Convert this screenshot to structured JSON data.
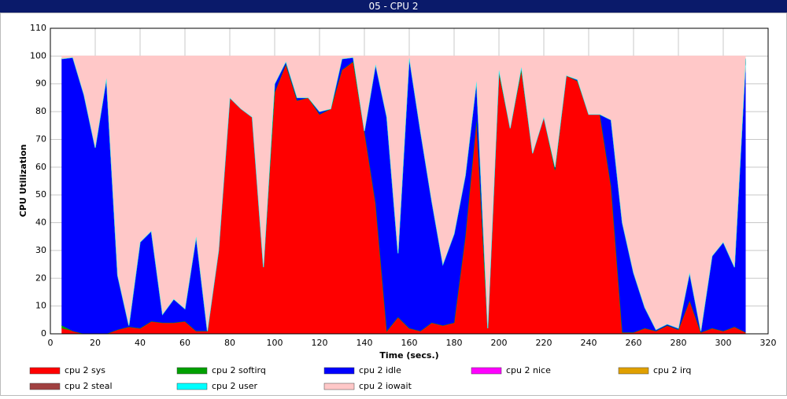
{
  "chart_data": {
    "type": "stacked_area",
    "title": "05 - CPU 2",
    "x_label": "Time (secs.)",
    "y_label": "CPU Utilization",
    "x": [
      5,
      10,
      15,
      20,
      25,
      30,
      35,
      40,
      45,
      50,
      55,
      60,
      65,
      70,
      75,
      80,
      85,
      90,
      95,
      100,
      105,
      110,
      115,
      120,
      125,
      130,
      135,
      140,
      145,
      150,
      155,
      160,
      165,
      170,
      175,
      180,
      185,
      190,
      195,
      200,
      205,
      210,
      215,
      220,
      225,
      230,
      235,
      240,
      245,
      250,
      255,
      260,
      265,
      270,
      275,
      280,
      285,
      290,
      295,
      300,
      305,
      310
    ],
    "xlim": [
      0,
      320
    ],
    "xticks": [
      0,
      20,
      40,
      60,
      80,
      100,
      120,
      140,
      160,
      180,
      200,
      220,
      240,
      260,
      280,
      300,
      320
    ],
    "ylim": [
      0,
      110
    ],
    "yticks": [
      0,
      10,
      20,
      30,
      40,
      50,
      60,
      70,
      80,
      90,
      100,
      110
    ],
    "grid": true,
    "series": [
      {
        "name": "cpu 2 sys",
        "color": "#ff0000",
        "values": [
          2,
          1,
          0,
          0,
          0,
          1.5,
          2.5,
          2,
          4.5,
          4,
          4,
          4.5,
          1,
          1,
          30,
          85,
          81,
          78,
          24,
          87,
          97,
          84,
          85,
          79,
          81,
          95,
          98,
          73,
          47,
          1,
          6,
          2,
          1,
          4,
          3,
          4,
          35,
          77,
          2,
          94,
          74,
          95,
          65,
          78,
          59,
          93,
          91,
          79,
          79,
          53,
          0.5,
          0.5,
          2,
          1,
          3,
          1.5,
          12,
          0.5,
          2,
          1,
          2.5,
          0.5
        ]
      },
      {
        "name": "cpu 2 softirq",
        "color": "#00a000",
        "values": [
          1,
          0,
          0,
          0,
          0,
          0,
          0,
          0,
          0,
          0,
          0,
          0,
          0,
          0,
          0,
          0,
          0,
          0,
          0,
          0,
          0,
          0,
          0,
          0,
          0,
          0,
          0,
          0,
          0,
          0,
          0,
          0,
          0,
          0,
          0,
          0,
          0,
          0,
          0,
          0,
          0,
          0,
          0,
          0,
          0,
          0,
          0,
          0,
          0,
          0,
          0,
          0,
          0,
          0,
          0,
          0,
          0,
          0,
          0,
          0,
          0,
          0
        ]
      },
      {
        "name": "cpu 2 idle",
        "color": "#0000ff",
        "values": [
          96,
          98.5,
          86,
          67,
          92,
          19.5,
          0.5,
          31,
          32.5,
          3,
          8.5,
          4.5,
          34,
          0,
          0,
          0,
          0,
          0,
          0,
          3,
          1,
          1,
          0,
          1,
          0,
          4,
          1.5,
          0,
          50,
          77,
          23,
          97.5,
          72,
          44,
          22,
          32,
          22,
          14,
          0,
          1,
          0,
          1,
          0,
          0,
          1,
          0,
          0.5,
          0,
          0,
          24,
          39.5,
          21.5,
          7.5,
          0.5,
          0.5,
          0.5,
          10,
          0.5,
          26,
          32,
          21.5,
          98.5
        ]
      },
      {
        "name": "cpu 2 nice",
        "color": "#ff00ff",
        "values": [
          0,
          0,
          0,
          0,
          0,
          0,
          0,
          0,
          0,
          0,
          0,
          0,
          0,
          0,
          0,
          0,
          0,
          0,
          0,
          0,
          0,
          0,
          0,
          0,
          0,
          0,
          0,
          0,
          0,
          0,
          0,
          0,
          0,
          0,
          0,
          0,
          0,
          0,
          0,
          0,
          0,
          0,
          0,
          0,
          0,
          0,
          0,
          0,
          0,
          0,
          0,
          0,
          0,
          0,
          0,
          0,
          0,
          0,
          0,
          0,
          0,
          0
        ]
      },
      {
        "name": "cpu 2 irq",
        "color": "#e0a000",
        "values": [
          0,
          0,
          0,
          0,
          0,
          0,
          0,
          0,
          0,
          0,
          0,
          0,
          0,
          0,
          0,
          0,
          0,
          0,
          0,
          0,
          0,
          0,
          0,
          0,
          0,
          0,
          0,
          0,
          0,
          0,
          0,
          0,
          0,
          0,
          0,
          0,
          0,
          0,
          0,
          0,
          0,
          0,
          0,
          0,
          0,
          0,
          0,
          0,
          0,
          0,
          0,
          0,
          0,
          0,
          0,
          0,
          0,
          0,
          0,
          0,
          0,
          0
        ]
      },
      {
        "name": "cpu 2 steal",
        "color": "#a04040",
        "values": [
          0,
          0,
          0,
          0,
          0,
          0,
          0,
          0,
          0,
          0,
          0,
          0,
          0,
          0,
          0,
          0,
          0,
          0,
          0,
          0,
          0,
          0,
          0,
          0,
          0,
          0,
          0,
          0,
          0,
          0,
          0,
          0,
          0,
          0,
          0,
          0,
          0,
          0,
          0,
          0,
          0,
          0,
          0,
          0,
          0,
          0,
          0,
          0,
          0,
          0,
          0,
          0,
          0,
          0,
          0,
          0,
          0,
          0,
          0,
          0,
          0,
          0
        ]
      },
      {
        "name": "cpu 2 user",
        "color": "#00ffff",
        "values": [
          0,
          0,
          0,
          0,
          0,
          0,
          0,
          0,
          0,
          0,
          0,
          0,
          0,
          0,
          0,
          0,
          0,
          0,
          0,
          0,
          0,
          0,
          0,
          0,
          0,
          0,
          0,
          0,
          0,
          0,
          0,
          0,
          0,
          0,
          0,
          0,
          0,
          0,
          0,
          0,
          0,
          0,
          0,
          0,
          0,
          0,
          0,
          0,
          0,
          0,
          0,
          0,
          0,
          0,
          0,
          0,
          0,
          0,
          0,
          0,
          0,
          0
        ]
      },
      {
        "name": "cpu 2 iowait",
        "color": "#ffc8c8",
        "values": [
          1,
          0.5,
          14,
          33,
          8,
          79,
          97,
          67,
          63,
          93,
          87.5,
          91,
          65,
          99,
          70,
          15,
          19,
          22,
          76,
          10,
          2,
          15,
          15,
          20,
          19,
          1,
          0.5,
          27,
          3,
          22,
          71,
          0.5,
          27,
          52,
          75,
          64,
          43,
          9,
          98,
          5,
          26,
          4,
          35,
          22,
          40,
          7,
          8.5,
          21,
          21,
          23,
          60,
          78,
          90.5,
          98.5,
          96.5,
          98,
          78,
          99,
          72,
          67,
          76,
          1
        ]
      }
    ]
  }
}
